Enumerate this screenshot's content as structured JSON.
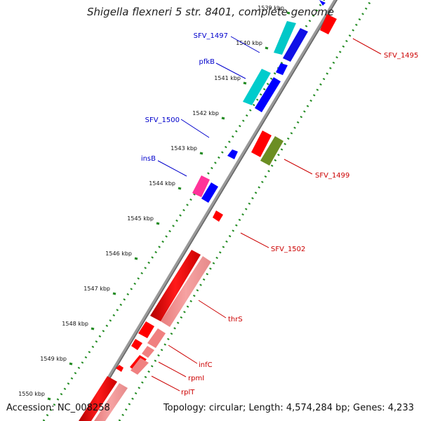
{
  "title": "Shigella flexneri 5 str. 8401, complete genome",
  "footer": {
    "accession": "Accession: NC_008258",
    "topology": "Topology: circular; Length: 4,574,284 bp; Genes: 4,233"
  },
  "ticks": [
    "1539 kbp",
    "1540 kbp",
    "1541 kbp",
    "1542 kbp",
    "1543 kbp",
    "1544 kbp",
    "1545 kbp",
    "1546 kbp",
    "1547 kbp",
    "1548 kbp",
    "1549 kbp",
    "1550 kbp"
  ],
  "colors": {
    "cds_forward": "#ff0000",
    "cds_reverse": "#0000ff",
    "rna": "#00cccc",
    "pseudo": "#ff6699",
    "misc": "#6b8e23",
    "backbone": "#888888",
    "dots": "#228b22",
    "label_forward": "#cc0000",
    "label_reverse": "#0000cc"
  },
  "labels_forward": [
    "SFV_1495",
    "SFV_1499",
    "SFV_1502",
    "thrS",
    "infC",
    "rpmI",
    "rplT"
  ],
  "labels_reverse": [
    "SFV_1497",
    "pfkB",
    "SFV_1500",
    "insB"
  ]
}
